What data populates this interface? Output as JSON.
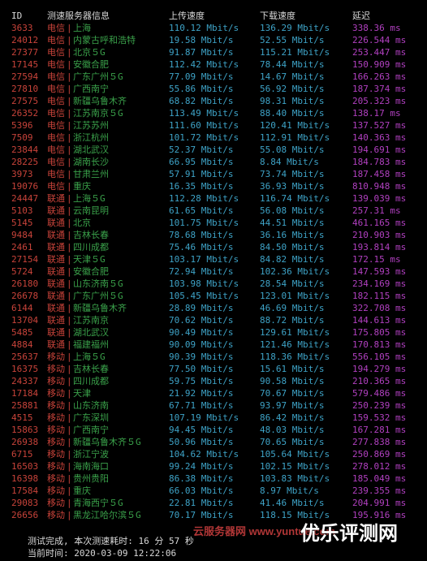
{
  "header": {
    "id": "ID",
    "node": "测速服务器信息",
    "upload": "上传速度",
    "download": "下载速度",
    "latency": "延迟"
  },
  "rows": [
    {
      "id": "3633",
      "isp": "电信",
      "sep": "|",
      "node": "上海",
      "up": "110.12 Mbit/s",
      "down": "136.29 Mbit/s",
      "lat": "338.36 ms"
    },
    {
      "id": "24012",
      "isp": "电信",
      "sep": "|",
      "node": "内蒙古呼和浩特",
      "up": "19.58 Mbit/s",
      "down": "52.55 Mbit/s",
      "lat": "226.544 ms"
    },
    {
      "id": "27377",
      "isp": "电信",
      "sep": "|",
      "node": "北京５G",
      "up": "91.87 Mbit/s",
      "down": "115.21 Mbit/s",
      "lat": "253.447 ms"
    },
    {
      "id": "17145",
      "isp": "电信",
      "sep": "|",
      "node": "安徽合肥",
      "up": "112.42 Mbit/s",
      "down": "78.44 Mbit/s",
      "lat": "150.909 ms"
    },
    {
      "id": "27594",
      "isp": "电信",
      "sep": "|",
      "node": "广东广州５G",
      "up": "77.09 Mbit/s",
      "down": "14.67 Mbit/s",
      "lat": "166.263 ms"
    },
    {
      "id": "27810",
      "isp": "电信",
      "sep": "|",
      "node": "广西南宁",
      "up": "55.86 Mbit/s",
      "down": "56.92 Mbit/s",
      "lat": "187.374 ms"
    },
    {
      "id": "27575",
      "isp": "电信",
      "sep": "|",
      "node": "新疆乌鲁木齐",
      "up": "68.82 Mbit/s",
      "down": "98.31 Mbit/s",
      "lat": "205.323 ms"
    },
    {
      "id": "26352",
      "isp": "电信",
      "sep": "|",
      "node": "江苏南京５G",
      "up": "113.49 Mbit/s",
      "down": "88.40 Mbit/s",
      "lat": "138.17 ms"
    },
    {
      "id": "5396",
      "isp": "电信",
      "sep": "|",
      "node": "江苏苏州",
      "up": "111.60 Mbit/s",
      "down": "120.41 Mbit/s",
      "lat": "137.527 ms"
    },
    {
      "id": "7509",
      "isp": "电信",
      "sep": "|",
      "node": "浙江杭州",
      "up": "101.72 Mbit/s",
      "down": "112.91 Mbit/s",
      "lat": "140.363 ms"
    },
    {
      "id": "23844",
      "isp": "电信",
      "sep": "|",
      "node": "湖北武汉",
      "up": "52.37 Mbit/s",
      "down": "55.08 Mbit/s",
      "lat": "194.691 ms"
    },
    {
      "id": "28225",
      "isp": "电信",
      "sep": "|",
      "node": "湖南长沙",
      "up": "66.95 Mbit/s",
      "down": "8.84 Mbit/s",
      "lat": "184.783 ms"
    },
    {
      "id": "3973",
      "isp": "电信",
      "sep": "|",
      "node": "甘肃兰州",
      "up": "57.91 Mbit/s",
      "down": "73.74 Mbit/s",
      "lat": "187.458 ms"
    },
    {
      "id": "19076",
      "isp": "电信",
      "sep": "|",
      "node": "重庆",
      "up": "16.35 Mbit/s",
      "down": "36.93 Mbit/s",
      "lat": "810.948 ms"
    },
    {
      "id": "24447",
      "isp": "联通",
      "sep": "|",
      "node": "上海５G",
      "up": "112.28 Mbit/s",
      "down": "116.74 Mbit/s",
      "lat": "139.039 ms"
    },
    {
      "id": "5103",
      "isp": "联通",
      "sep": "|",
      "node": "云南昆明",
      "up": "61.65 Mbit/s",
      "down": "56.08 Mbit/s",
      "lat": "257.31 ms"
    },
    {
      "id": "5145",
      "isp": "联通",
      "sep": "|",
      "node": "北京",
      "up": "101.75 Mbit/s",
      "down": "44.51 Mbit/s",
      "lat": "461.165 ms"
    },
    {
      "id": "9484",
      "isp": "联通",
      "sep": "|",
      "node": "吉林长春",
      "up": "78.68 Mbit/s",
      "down": "36.16 Mbit/s",
      "lat": "210.903 ms"
    },
    {
      "id": "2461",
      "isp": "联通",
      "sep": "|",
      "node": "四川成都",
      "up": "75.46 Mbit/s",
      "down": "84.50 Mbit/s",
      "lat": "193.814 ms"
    },
    {
      "id": "27154",
      "isp": "联通",
      "sep": "|",
      "node": "天津５G",
      "up": "103.17 Mbit/s",
      "down": "84.82 Mbit/s",
      "lat": "172.15 ms"
    },
    {
      "id": "5724",
      "isp": "联通",
      "sep": "|",
      "node": "安徽合肥",
      "up": "72.94 Mbit/s",
      "down": "102.36 Mbit/s",
      "lat": "147.593 ms"
    },
    {
      "id": "26180",
      "isp": "联通",
      "sep": "|",
      "node": "山东济南５G",
      "up": "103.98 Mbit/s",
      "down": "28.54 Mbit/s",
      "lat": "234.169 ms"
    },
    {
      "id": "26678",
      "isp": "联通",
      "sep": "|",
      "node": "广东广州５G",
      "up": "105.45 Mbit/s",
      "down": "123.01 Mbit/s",
      "lat": "182.115 ms"
    },
    {
      "id": "6144",
      "isp": "联通",
      "sep": "|",
      "node": "新疆乌鲁木齐",
      "up": "28.89 Mbit/s",
      "down": "46.69 Mbit/s",
      "lat": "322.708 ms"
    },
    {
      "id": "13704",
      "isp": "联通",
      "sep": "|",
      "node": "江苏南京",
      "up": "70.62 Mbit/s",
      "down": "88.72 Mbit/s",
      "lat": "144.613 ms"
    },
    {
      "id": "5485",
      "isp": "联通",
      "sep": "|",
      "node": "湖北武汉",
      "up": "90.49 Mbit/s",
      "down": "129.61 Mbit/s",
      "lat": "175.805 ms"
    },
    {
      "id": "4884",
      "isp": "联通",
      "sep": "|",
      "node": "福建福州",
      "up": "90.09 Mbit/s",
      "down": "121.46 Mbit/s",
      "lat": "170.813 ms"
    },
    {
      "id": "25637",
      "isp": "移动",
      "sep": "|",
      "node": "上海５G",
      "up": "90.39 Mbit/s",
      "down": "118.36 Mbit/s",
      "lat": "556.105 ms"
    },
    {
      "id": "16375",
      "isp": "移动",
      "sep": "|",
      "node": "吉林长春",
      "up": "77.50 Mbit/s",
      "down": "15.61 Mbit/s",
      "lat": "194.279 ms"
    },
    {
      "id": "24337",
      "isp": "移动",
      "sep": "|",
      "node": "四川成都",
      "up": "59.75 Mbit/s",
      "down": "90.58 Mbit/s",
      "lat": "210.365 ms"
    },
    {
      "id": "17184",
      "isp": "移动",
      "sep": "|",
      "node": "天津",
      "up": "21.92 Mbit/s",
      "down": "70.67 Mbit/s",
      "lat": "579.486 ms"
    },
    {
      "id": "25881",
      "isp": "移动",
      "sep": "|",
      "node": "山东济南",
      "up": "67.71 Mbit/s",
      "down": "93.97 Mbit/s",
      "lat": "250.239 ms"
    },
    {
      "id": "4515",
      "isp": "移动",
      "sep": "|",
      "node": "广东深圳",
      "up": "107.19 Mbit/s",
      "down": "86.42 Mbit/s",
      "lat": "159.532 ms"
    },
    {
      "id": "15863",
      "isp": "移动",
      "sep": "|",
      "node": "广西南宁",
      "up": "94.45 Mbit/s",
      "down": "48.03 Mbit/s",
      "lat": "167.281 ms"
    },
    {
      "id": "26938",
      "isp": "移动",
      "sep": "|",
      "node": "新疆乌鲁木齐５G",
      "up": "50.96 Mbit/s",
      "down": "70.65 Mbit/s",
      "lat": "277.838 ms"
    },
    {
      "id": "6715",
      "isp": "移动",
      "sep": "|",
      "node": "浙江宁波",
      "up": "104.62 Mbit/s",
      "down": "105.64 Mbit/s",
      "lat": "250.869 ms"
    },
    {
      "id": "16503",
      "isp": "移动",
      "sep": "|",
      "node": "海南海口",
      "up": "99.24 Mbit/s",
      "down": "102.15 Mbit/s",
      "lat": "278.012 ms"
    },
    {
      "id": "16398",
      "isp": "移动",
      "sep": "|",
      "node": "贵州贵阳",
      "up": "86.38 Mbit/s",
      "down": "103.83 Mbit/s",
      "lat": "185.049 ms"
    },
    {
      "id": "17584",
      "isp": "移动",
      "sep": "|",
      "node": "重庆",
      "up": "66.03 Mbit/s",
      "down": "8.97 Mbit/s",
      "lat": "239.355 ms"
    },
    {
      "id": "29083",
      "isp": "移动",
      "sep": "|",
      "node": "青海西宁５G",
      "up": "22.81 Mbit/s",
      "down": "41.46 Mbit/s",
      "lat": "204.991 ms"
    },
    {
      "id": "26656",
      "isp": "移动",
      "sep": "|",
      "node": "黑龙江哈尔滨５G",
      "up": "70.17 Mbit/s",
      "down": "118.15 Mbit/s",
      "lat": "195.916 ms"
    }
  ],
  "footer": {
    "done": "测试完成, 本次测速耗时: 16 分 57 秒",
    "time": "当前时间: 2020-03-09 12:22:06"
  },
  "watermarks": {
    "left": "云服务器网 www.yuntue.com",
    "right": "优乐评测网"
  },
  "colors": {
    "background": "#000000",
    "id": "#c8433a",
    "isp": "#c8433a",
    "node": "#3aa14a",
    "speed": "#3ea3c7",
    "latency": "#b140c0",
    "text": "#d9d9d9"
  }
}
